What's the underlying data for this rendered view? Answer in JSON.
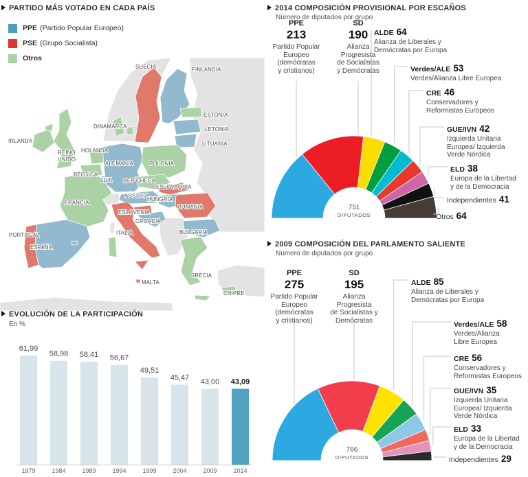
{
  "chart_data": [
    {
      "type": "map",
      "title": "PARTIDO MÁS VOTADO EN CADA PAÍS",
      "legend": [
        {
          "code": "PPE",
          "label": "(Partido Popular Europeo)",
          "color": "#4D9FBC"
        },
        {
          "code": "PSE",
          "label": "(Grupo Socialista)",
          "color": "#E3342E"
        },
        {
          "code": "Otros",
          "label": "",
          "color": "#A9D3A4"
        }
      ],
      "party_colors": {
        "PPE": "#92B9CD",
        "PSE": "#E1796B",
        "Otros": "#ABD2A5",
        "none": "#E3E3E3"
      },
      "countries": [
        {
          "id": "suecia",
          "name": "SUECIA",
          "party": "PSE"
        },
        {
          "id": "finlandia",
          "name": "FINLANDIA",
          "party": "PPE"
        },
        {
          "id": "estonia",
          "name": "ESTONIA",
          "party": "Otros"
        },
        {
          "id": "letonia",
          "name": "LETONIA",
          "party": "PPE"
        },
        {
          "id": "lituania",
          "name": "LITUANIA",
          "party": "PPE"
        },
        {
          "id": "dinamarca",
          "name": "DINAMARCA",
          "party": "Otros"
        },
        {
          "id": "irlanda",
          "name": "IRLANDA",
          "party": "Otros"
        },
        {
          "id": "reino_unido",
          "name": "REINO UNIDO",
          "party": "Otros"
        },
        {
          "id": "holanda",
          "name": "HOLANDA",
          "party": "Otros"
        },
        {
          "id": "belgica",
          "name": "BÉLGICA",
          "party": "Otros"
        },
        {
          "id": "lux",
          "name": "LUX.",
          "party": "PPE"
        },
        {
          "id": "alemania",
          "name": "ALEMANIA",
          "party": "PPE"
        },
        {
          "id": "polonia",
          "name": "POLONIA",
          "party": "Otros"
        },
        {
          "id": "rep_checa",
          "name": "REP CHECA",
          "party": "Otros"
        },
        {
          "id": "eslovaquia",
          "name": "ESLOVAQUIA",
          "party": "PSE"
        },
        {
          "id": "austria",
          "name": "AUSTRIA",
          "party": "PPE"
        },
        {
          "id": "hungria",
          "name": "HUNGRÍA",
          "party": "PPE"
        },
        {
          "id": "francia",
          "name": "FRANCIA",
          "party": "Otros"
        },
        {
          "id": "eslovenia",
          "name": "ESLOVENIA",
          "party": "PSE"
        },
        {
          "id": "croacia",
          "name": "CROACIA",
          "party": "PPE"
        },
        {
          "id": "rumania",
          "name": "RUMANIA",
          "party": "PSE"
        },
        {
          "id": "bulgaria",
          "name": "BULGARIA",
          "party": "PPE"
        },
        {
          "id": "italia",
          "name": "ITALIA",
          "party": "PSE"
        },
        {
          "id": "portugal",
          "name": "PORTUGAL",
          "party": "PSE"
        },
        {
          "id": "espana",
          "name": "ESPAÑA",
          "party": "PPE"
        },
        {
          "id": "grecia",
          "name": "GRECIA",
          "party": "Otros"
        },
        {
          "id": "malta",
          "name": "MALTA",
          "party": "PSE"
        },
        {
          "id": "chipre",
          "name": "CHIPRE",
          "party": "Otros"
        },
        {
          "id": "cerdena",
          "name": "",
          "party": "Otros"
        }
      ]
    },
    {
      "type": "bar",
      "title": "EVOLUCIÓN DE LA PARTICIPACIÓN",
      "subtitle": "En %",
      "categories": [
        "1979",
        "1984",
        "1989",
        "1994",
        "1999",
        "2004",
        "2009",
        "2014"
      ],
      "values": [
        61.99,
        58.98,
        58.41,
        56.67,
        49.51,
        45.47,
        43.0,
        43.09
      ],
      "value_labels": [
        "61,99",
        "58,98",
        "58,41",
        "56,67",
        "49,51",
        "45,47",
        "43,00",
        "43,09"
      ],
      "ylim": [
        0,
        70
      ],
      "grid": false,
      "bar_color": "#D7E5EB",
      "highlight_color": "#4FA3BE",
      "highlight_index": 7
    },
    {
      "type": "pie",
      "variant": "half-donut",
      "title": "2014 COMPOSICIÓN PROVISIONAL POR ESCAÑOS",
      "subtitle": "Número de diputados por grupo",
      "total": 751,
      "center_label": "DIPUTADOS",
      "groups": [
        {
          "id": "ppe",
          "code": "PPE",
          "seats": 213,
          "color": "#2BA9E0",
          "desc": [
            "Partido Popular",
            "Europeo",
            "(demócratas",
            "y cristianos)"
          ]
        },
        {
          "id": "sd",
          "code": "SD",
          "seats": 190,
          "color": "#EC1D25",
          "desc": [
            "Alianza",
            "Progresista",
            "de Socialistas",
            "y Demócratas"
          ]
        },
        {
          "id": "alde",
          "code": "ALDE",
          "seats": 64,
          "color": "#F9DC00",
          "desc": [
            "Alianza de Liberales y",
            "Demócratas por Europa"
          ]
        },
        {
          "id": "verdes",
          "code": "Verdes/ALE",
          "seats": 53,
          "color": "#009E3D",
          "desc": [
            "Verdes/Alianza Libre Europea"
          ]
        },
        {
          "id": "cre",
          "code": "CRE",
          "seats": 46,
          "color": "#00BCD1",
          "desc": [
            "Conservadores y",
            "Reformistas Europeos"
          ]
        },
        {
          "id": "gue",
          "code": "GUE/IVN",
          "seats": 42,
          "color": "#E8392B",
          "desc": [
            "Izquierda Unitaria",
            "Europea/ Izquierda",
            "Verde Nórdica"
          ]
        },
        {
          "id": "eld",
          "code": "ELD",
          "seats": 38,
          "color": "#CD66A5",
          "desc": [
            "Europa de la Libertad",
            "y de la Democracia"
          ]
        },
        {
          "id": "indep",
          "code": "Independientes",
          "seats": 41,
          "color": "#111111",
          "desc": []
        },
        {
          "id": "otros",
          "code": "Otros",
          "seats": 64,
          "color": "#473C35",
          "desc": []
        }
      ]
    },
    {
      "type": "pie",
      "variant": "half-donut",
      "title": "2009 COMPOSICIÓN DEL PARLAMENTO SALIENTE",
      "subtitle": "Número de diputados por grupo",
      "total": 766,
      "center_label": "DIPUTADOS",
      "groups": [
        {
          "id": "ppe",
          "code": "PPE",
          "seats": 275,
          "color": "#2BA9E0",
          "desc": [
            "Partido Popular",
            "Europeo",
            "(demócratas",
            "y cristianos)"
          ]
        },
        {
          "id": "sd",
          "code": "SD",
          "seats": 195,
          "color": "#F23D4C",
          "desc": [
            "Alianza",
            "Progresista",
            "de Socialistas y",
            "Demócratas"
          ]
        },
        {
          "id": "alde",
          "code": "ALDE",
          "seats": 85,
          "color": "#FFE200",
          "desc": [
            "Alianza de Liberales y",
            "Demócratas por Europa"
          ]
        },
        {
          "id": "verdes",
          "code": "Verdes/ALE",
          "seats": 58,
          "color": "#16A455",
          "desc": [
            "Verdes/Alianza",
            "Libre Europea"
          ]
        },
        {
          "id": "cre",
          "code": "CRE",
          "seats": 56,
          "color": "#8EC8E6",
          "desc": [
            "Conservadores y",
            "Reformistas Europeos"
          ]
        },
        {
          "id": "gue",
          "code": "GUE/IVN",
          "seats": 35,
          "color": "#F2695B",
          "desc": [
            "Izquierda Unitaria",
            "Europea/ Izquierda",
            "Verde Nórdica"
          ]
        },
        {
          "id": "eld",
          "code": "ELD",
          "seats": 33,
          "color": "#E591BA",
          "desc": [
            "Europa de la Libertad",
            "y de la Democracia"
          ]
        },
        {
          "id": "indep",
          "code": "Independientes",
          "seats": 29,
          "color": "#2B2B2B",
          "desc": []
        }
      ]
    }
  ]
}
